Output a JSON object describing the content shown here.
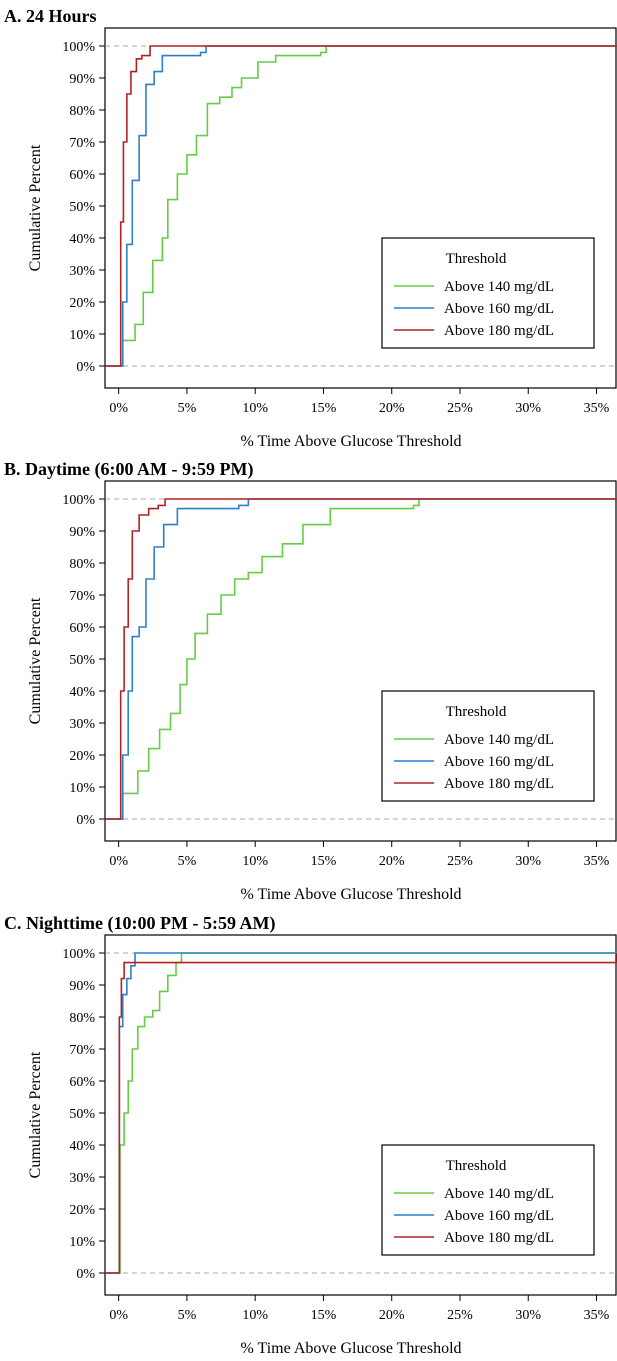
{
  "colors": {
    "green": "#66cc44",
    "blue": "#2f7fc8",
    "red": "#b22222",
    "ref": "#aaaaaa"
  },
  "chart_data": [
    {
      "type": "line",
      "title": "A. 24 Hours",
      "xlabel": "% Time Above Glucose Threshold",
      "ylabel": "Cumulative Percent",
      "xlim": [
        -1,
        36.5
      ],
      "ylim": [
        0,
        100
      ],
      "x_ticks": [
        "0%",
        "5%",
        "10%",
        "15%",
        "20%",
        "25%",
        "30%",
        "35%"
      ],
      "y_ticks": [
        "0%",
        "10%",
        "20%",
        "30%",
        "40%",
        "50%",
        "60%",
        "70%",
        "80%",
        "90%",
        "100%"
      ],
      "legend": {
        "title": "Threshold",
        "position": "bottom-right"
      },
      "series": [
        {
          "name": "Above 140 mg/dL",
          "x": [
            0,
            0.3,
            1.2,
            1.8,
            2.5,
            3.2,
            3.6,
            4.3,
            5.0,
            5.7,
            6.5,
            7.4,
            8.3,
            9.0,
            10.2,
            11.5,
            14.8,
            15.2,
            36.5
          ],
          "y": [
            0,
            8,
            13,
            23,
            33,
            40,
            52,
            60,
            66,
            72,
            82,
            84,
            87,
            90,
            95,
            97,
            98,
            100,
            100
          ]
        },
        {
          "name": "Above 160 mg/dL",
          "x": [
            0,
            0.3,
            0.6,
            1.0,
            1.5,
            2.0,
            2.6,
            3.2,
            6.0,
            6.4,
            36.5
          ],
          "y": [
            0,
            20,
            38,
            58,
            72,
            88,
            92,
            97,
            98,
            100,
            100
          ]
        },
        {
          "name": "Above 180 mg/dL",
          "x": [
            0,
            0.15,
            0.35,
            0.6,
            0.9,
            1.3,
            1.7,
            2.3,
            36.5
          ],
          "y": [
            0,
            45,
            70,
            85,
            92,
            96,
            97,
            100,
            100
          ]
        }
      ]
    },
    {
      "type": "line",
      "title": "B. Daytime (6:00 AM - 9:59 PM)",
      "xlabel": "% Time Above Glucose Threshold",
      "ylabel": "Cumulative Percent",
      "xlim": [
        -1,
        36.5
      ],
      "ylim": [
        0,
        100
      ],
      "x_ticks": [
        "0%",
        "5%",
        "10%",
        "15%",
        "20%",
        "25%",
        "30%",
        "35%"
      ],
      "y_ticks": [
        "0%",
        "10%",
        "20%",
        "30%",
        "40%",
        "50%",
        "60%",
        "70%",
        "80%",
        "90%",
        "100%"
      ],
      "legend": {
        "title": "Threshold",
        "position": "bottom-right"
      },
      "series": [
        {
          "name": "Above 140 mg/dL",
          "x": [
            0,
            0.3,
            1.4,
            2.2,
            3.0,
            3.8,
            4.5,
            5.0,
            5.6,
            6.5,
            7.5,
            8.5,
            9.5,
            10.5,
            12.0,
            13.5,
            15.5,
            21.6,
            22.0,
            36.5
          ],
          "y": [
            0,
            8,
            15,
            22,
            28,
            33,
            42,
            50,
            58,
            64,
            70,
            75,
            77,
            82,
            86,
            92,
            97,
            98,
            100,
            100
          ]
        },
        {
          "name": "Above 160 mg/dL",
          "x": [
            0,
            0.3,
            0.7,
            1.0,
            1.5,
            2.0,
            2.6,
            3.3,
            4.3,
            8.8,
            9.5,
            36.5
          ],
          "y": [
            0,
            20,
            40,
            57,
            60,
            75,
            85,
            92,
            97,
            98,
            100,
            100
          ]
        },
        {
          "name": "Above 180 mg/dL",
          "x": [
            0,
            0.15,
            0.4,
            0.7,
            1.0,
            1.5,
            2.2,
            2.9,
            3.4,
            36.5
          ],
          "y": [
            0,
            40,
            60,
            75,
            90,
            95,
            97,
            98,
            100,
            100
          ]
        }
      ]
    },
    {
      "type": "line",
      "title": "C. Nighttime (10:00 PM - 5:59 AM)",
      "xlabel": "% Time Above Glucose Threshold",
      "ylabel": "Cumulative Percent",
      "xlim": [
        -1,
        36.5
      ],
      "ylim": [
        0,
        100
      ],
      "x_ticks": [
        "0%",
        "5%",
        "10%",
        "15%",
        "20%",
        "25%",
        "30%",
        "35%"
      ],
      "y_ticks": [
        "0%",
        "10%",
        "20%",
        "30%",
        "40%",
        "50%",
        "60%",
        "70%",
        "80%",
        "90%",
        "100%"
      ],
      "legend": {
        "title": "Threshold",
        "position": "bottom-right"
      },
      "series": [
        {
          "name": "Above 140 mg/dL",
          "x": [
            0,
            0.1,
            0.4,
            0.7,
            1.0,
            1.4,
            1.9,
            2.5,
            3.0,
            3.6,
            4.2,
            4.6,
            36.5
          ],
          "y": [
            0,
            40,
            50,
            60,
            70,
            77,
            80,
            82,
            88,
            93,
            97,
            100,
            100
          ]
        },
        {
          "name": "Above 160 mg/dL",
          "x": [
            0,
            0.05,
            0.3,
            0.6,
            0.9,
            1.2,
            36.5
          ],
          "y": [
            0,
            77,
            87,
            92,
            96,
            100,
            100
          ]
        },
        {
          "name": "Above 180 mg/dL",
          "x": [
            0,
            0.05,
            0.2,
            0.4,
            36.5
          ],
          "y": [
            0,
            80,
            92,
            97,
            100
          ]
        }
      ]
    }
  ]
}
